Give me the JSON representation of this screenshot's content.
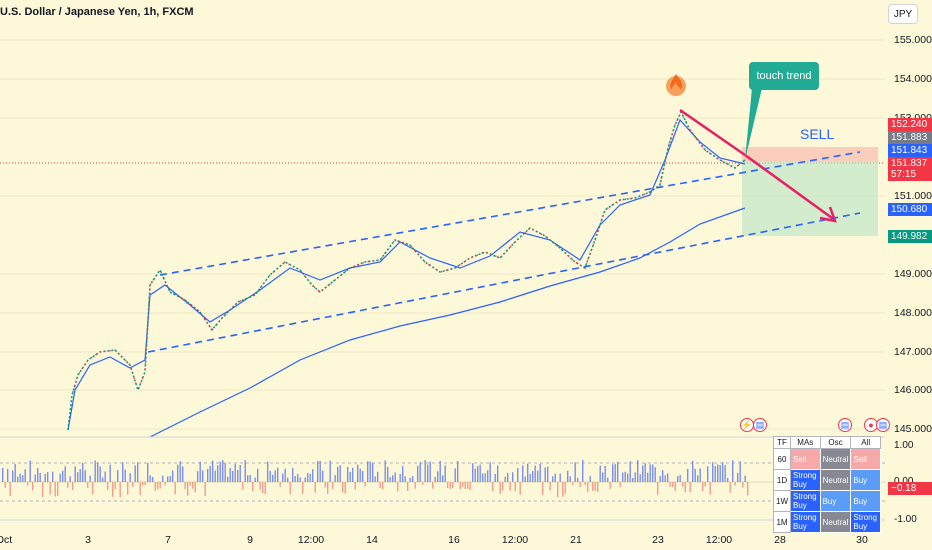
{
  "header": {
    "title": "U.S. Dollar / Japanese Yen, 1h, FXCM",
    "currency_button": "JPY"
  },
  "y_axis": {
    "ticks": [
      "155.000",
      "154.000",
      "153.000",
      "151.000",
      "149.000",
      "148.000",
      "147.000",
      "146.000",
      "145.000"
    ]
  },
  "price_tags": [
    {
      "value": "152.240",
      "color": "#f23645"
    },
    {
      "value": "151.883",
      "color": "#787b86"
    },
    {
      "value": "151.843",
      "color": "#2962ff"
    },
    {
      "value": "151.837",
      "color": "#f23645"
    },
    {
      "value": "57:15",
      "color": "#f23645"
    },
    {
      "value": "150.680",
      "color": "#2962ff"
    },
    {
      "value": "149.982",
      "color": "#089981"
    }
  ],
  "x_axis": {
    "ticks": [
      "Oct",
      "3",
      "7",
      "9",
      "12:00",
      "14",
      "16",
      "12:00",
      "21",
      "23",
      "12:00",
      "28",
      "30"
    ]
  },
  "annotations": {
    "callout": "touch trend",
    "trade_label": "SELL"
  },
  "oscillator": {
    "ticks": [
      "1.00",
      "0.00",
      "-1.00"
    ],
    "value_tag": "−0.18",
    "value_tag_color": "#f23645"
  },
  "tech_table": {
    "headers": [
      "TF",
      "MAs",
      "Osc",
      "All"
    ],
    "rows": [
      {
        "tf": "60",
        "mas": "Sell",
        "osc": "Neutral",
        "all": "Sell"
      },
      {
        "tf": "1D",
        "mas": "Strong Buy",
        "osc": "Neutral",
        "all": "Buy"
      },
      {
        "tf": "1W",
        "mas": "Strong Buy",
        "osc": "Buy",
        "all": "Buy"
      },
      {
        "tf": "1M",
        "mas": "Strong Buy",
        "osc": "Neutral",
        "all": "Strong Buy"
      }
    ]
  },
  "colors": {
    "sell": "#f7a8a8",
    "neutral": "#868993",
    "buy": "#5b9cf6",
    "strong_buy": "#2962ff",
    "channel": "#2962ff",
    "arrow": "#e91e63"
  }
}
